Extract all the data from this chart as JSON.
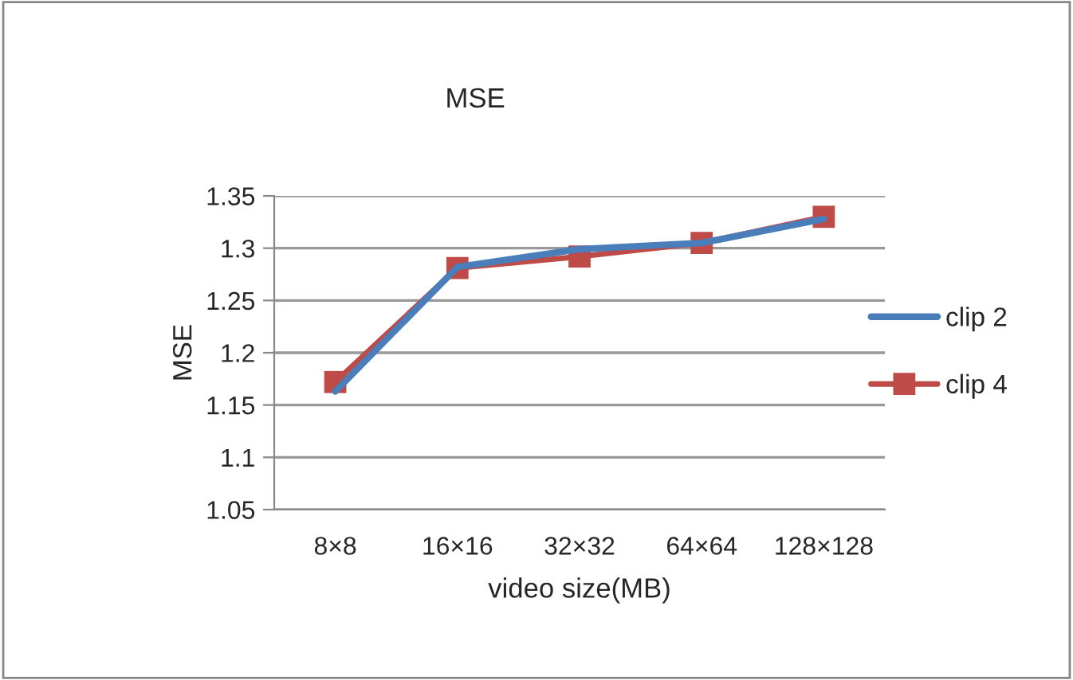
{
  "chart_data": {
    "type": "line",
    "title": "MSE",
    "xlabel": "video size(MB)",
    "ylabel": "MSE",
    "categories": [
      "8×8",
      "16×16",
      "32×32",
      "64×64",
      "128×128"
    ],
    "series": [
      {
        "name": "clip 2",
        "color": "#4a7ebb",
        "values": [
          1.163,
          1.282,
          1.299,
          1.305,
          1.328
        ],
        "marker": "none"
      },
      {
        "name": "clip 4",
        "color": "#be4b48",
        "values": [
          1.172,
          1.281,
          1.292,
          1.305,
          1.33
        ],
        "marker": "square"
      }
    ],
    "ylim": [
      1.05,
      1.35
    ],
    "yticks": [
      1.05,
      1.1,
      1.15,
      1.2,
      1.25,
      1.3,
      1.35
    ],
    "grid": "y",
    "legend": "right"
  }
}
